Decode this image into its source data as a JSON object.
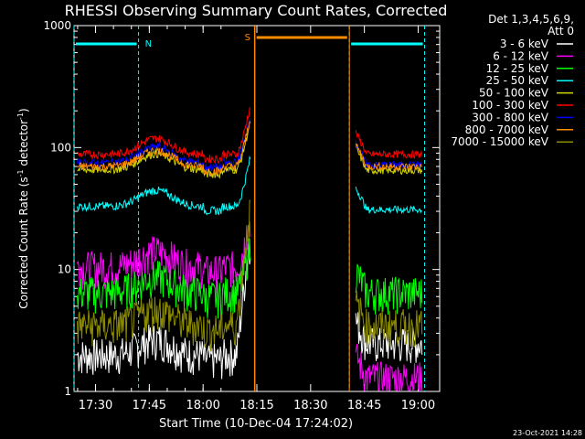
{
  "chart_data": {
    "type": "line",
    "title": "RHESSI Observing Summary Count Rates, Corrected",
    "xlabel": "Start Time (10-Dec-04 17:24:02)",
    "ylabel_main": "Corrected Count Rate (s",
    "ylabel_exp1": "-1",
    "ylabel_mid": " detector",
    "ylabel_exp2": "-1",
    "ylabel_end": ")",
    "y_scale": "log",
    "ylim": [
      1,
      1000
    ],
    "xlim_minutes": [
      17.4,
      19.1
    ],
    "x_tick_labels": [
      "17:30",
      "17:45",
      "18:00",
      "18:15",
      "18:30",
      "18:45",
      "19:00"
    ],
    "y_tick_labels": [
      "1",
      "10",
      "100",
      "1000"
    ],
    "footer": "23-Oct-2021 14:28",
    "legend_header": [
      "Det 1,3,4,5,6,9,",
      "Att 0"
    ],
    "legend_placement": "right",
    "series": [
      {
        "name": "3 - 6 keV",
        "color": "#ffffff",
        "level_pre": 2.0,
        "level_post": 2.5
      },
      {
        "name": "6 - 12 keV",
        "color": "#ff00ff",
        "level_pre": 10.5,
        "level_post": 1.3
      },
      {
        "name": "12 - 25 keV",
        "color": "#00ff00",
        "level_pre": 6.5,
        "level_post": 6.5
      },
      {
        "name": "25 - 50 keV",
        "color": "#00ffff",
        "level_pre": 33,
        "level_post": 31
      },
      {
        "name": "50 - 100 keV",
        "color": "#d4d400",
        "level_pre": 66,
        "level_post": 65
      },
      {
        "name": "100 - 300 keV",
        "color": "#ff0000",
        "level_pre": 88,
        "level_post": 88
      },
      {
        "name": "300 - 800 keV",
        "color": "#0000ff",
        "level_pre": 75,
        "level_post": 72
      },
      {
        "name": "800 - 7000 keV",
        "color": "#ff8c00",
        "level_pre": 70,
        "level_post": 70
      },
      {
        "name": "7000 - 15000 keV",
        "color": "#8b8b00",
        "level_pre": 3.5,
        "level_post": 3.5
      }
    ],
    "annotations": {
      "night_label": "N",
      "saa_label": "S"
    }
  }
}
